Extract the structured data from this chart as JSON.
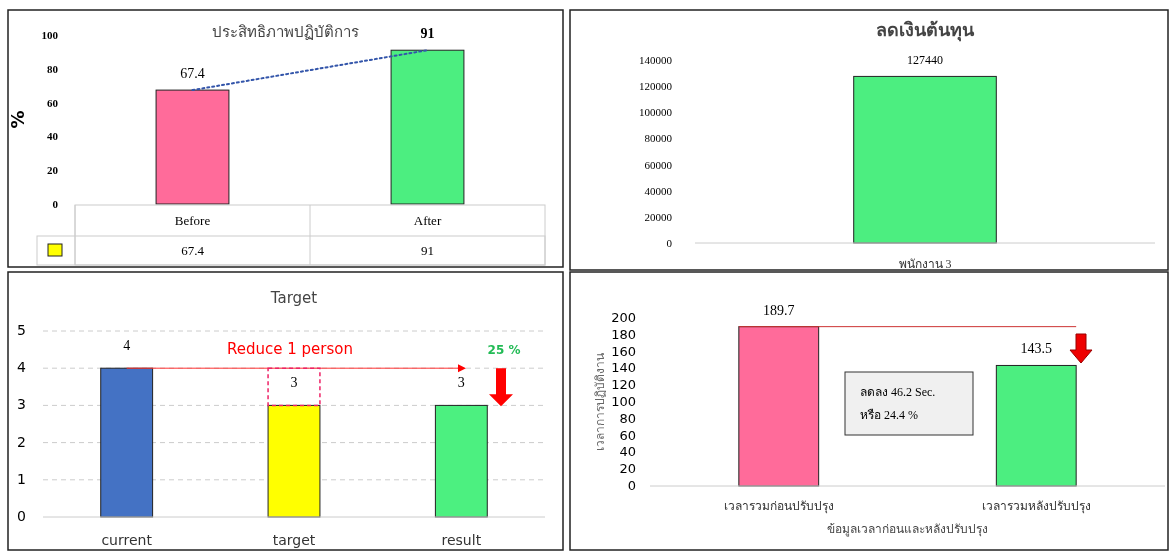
{
  "chart_data": [
    {
      "type": "bar",
      "title": "ประสิทธิภาพปฏิบัติการ",
      "ylabel": "%",
      "categories": [
        "Before",
        "After"
      ],
      "ylim": [
        0,
        100
      ],
      "yticks": [
        0,
        20,
        40,
        60,
        80,
        100
      ],
      "data_labels": true,
      "series": [
        {
          "type": "bar",
          "color": "#ffff00",
          "colors": [
            "#ff6b9a",
            "#4cee80"
          ],
          "values": [
            67.4,
            91
          ]
        },
        {
          "type": "line",
          "color": "#3355aa",
          "line_style": "dotted",
          "values": [
            67.4,
            91
          ]
        }
      ]
    },
    {
      "type": "bar",
      "title": "ลดเงินต้นทุน",
      "categories": [
        "พนักงาน 3"
      ],
      "values": [
        127440
      ],
      "color": "#4cee80",
      "ylim": [
        0,
        140000
      ],
      "yticks": [
        0,
        20000,
        40000,
        60000,
        80000,
        100000,
        120000,
        140000
      ],
      "data_labels": true
    },
    {
      "type": "bar",
      "title": "Target",
      "categories": [
        "current",
        "target",
        "result"
      ],
      "values": [
        4,
        3,
        3
      ],
      "colors": [
        "#4472c4",
        "#ffff00",
        "#4cf080"
      ],
      "ylim": [
        0,
        5
      ],
      "yticks": [
        0,
        1,
        2,
        3,
        4,
        5
      ],
      "grid": "y",
      "data_labels": true,
      "annotations": [
        "Reduce  1 person",
        "25 %"
      ]
    },
    {
      "type": "bar",
      "categories": [
        "เวลารวมก่อนปรับปรุง",
        "เวลารวมหลังปรับปรุง"
      ],
      "values": [
        189.7,
        143.5
      ],
      "colors": [
        "#ff6b9a",
        "#4cee80"
      ],
      "ylim": [
        0,
        200
      ],
      "yticks": [
        0,
        20,
        40,
        60,
        80,
        100,
        120,
        140,
        160,
        180,
        200
      ],
      "ylabel": "เวลาการปฏิบัติงาน",
      "xlabel": "ข้อมูลเวลาก่อนและหลังปรับปรุง",
      "data_labels": true,
      "ref_lines": [
        {
          "axis": "y",
          "value": 189.7,
          "color": "#cc3333"
        }
      ],
      "annotations": [
        "ลดลง  46.2 Sec.",
        "หรือ    24.4  %"
      ]
    }
  ]
}
